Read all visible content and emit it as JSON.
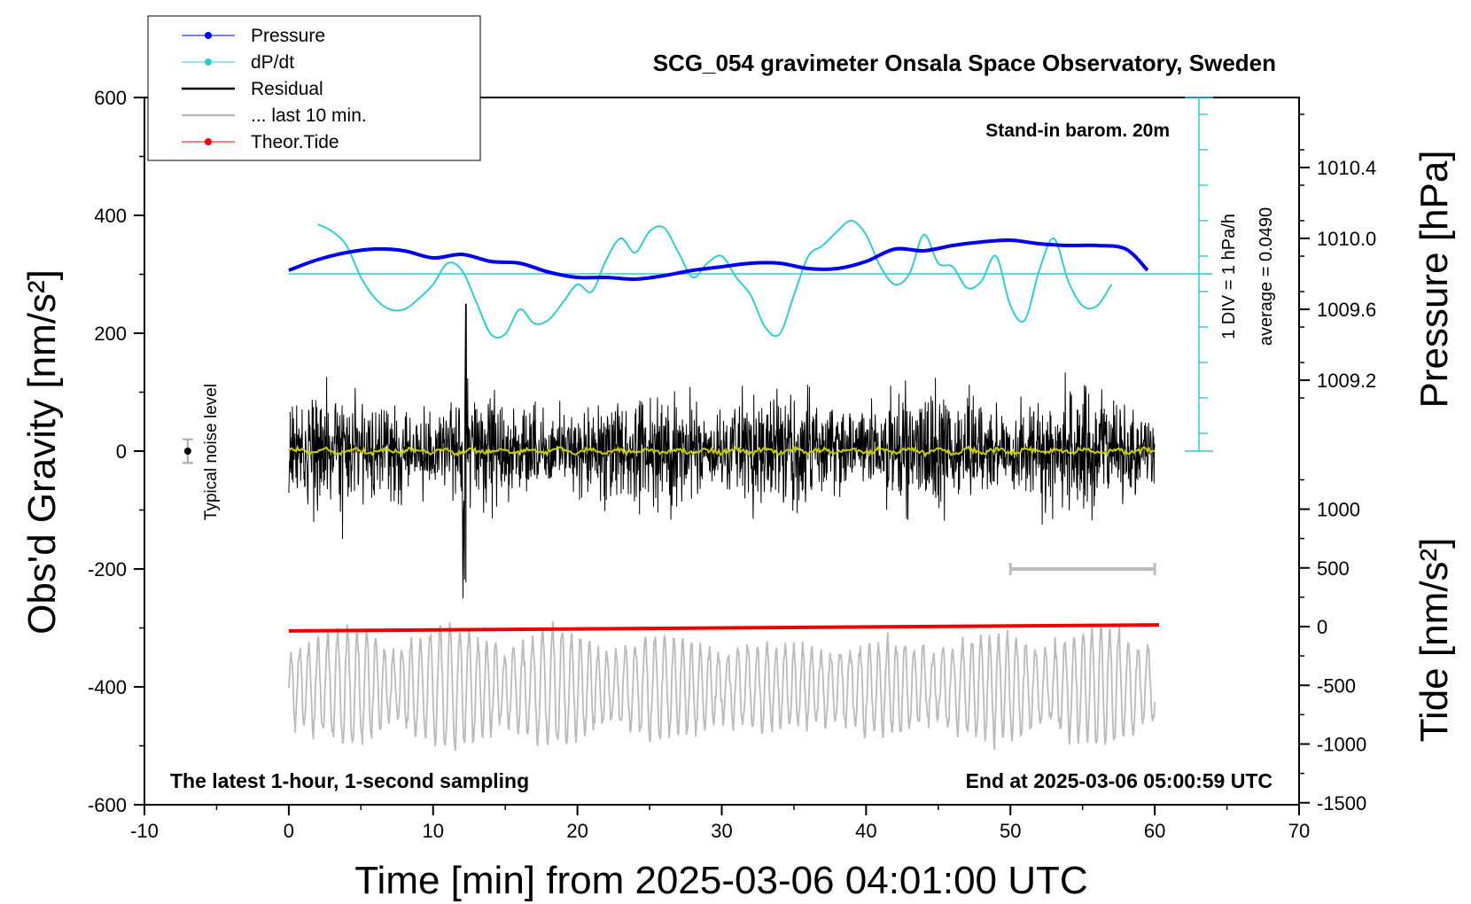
{
  "chart_data": {
    "type": "line",
    "title": "SCG_054 gravimeter Onsala Space Observatory, Sweden",
    "xlabel": "Time [min] from 2025-03-06 04:01:00 UTC",
    "ylabel_left": "Obs'd Gravity [nm/s²]",
    "ylabel_right_top": "Pressure [hPa]",
    "ylabel_right_bottom": "Tide [nm/s²]",
    "xlim": [
      -10,
      70
    ],
    "ylim_left": [
      -600,
      600
    ],
    "x_ticks": [
      "-10",
      "0",
      "10",
      "20",
      "30",
      "40",
      "50",
      "60",
      "70"
    ],
    "y_ticks_left": [
      "600",
      "400",
      "200",
      "0",
      "-200",
      "-400",
      "-600"
    ],
    "pressure_ticks": [
      "1010.4",
      "1010.0",
      "1009.6",
      "1009.2"
    ],
    "tide_ticks": [
      "1000",
      "500",
      "0",
      "-500",
      "-1000",
      "-1500"
    ],
    "annotations": {
      "barometer": "Stand-in barom. 20m",
      "dpdt_scale": "1 DIV = 1 hPa/h",
      "dpdt_average": "average = 0.0490",
      "noise_label": "Typical noise level",
      "bottom_left": "The latest 1-hour, 1-second sampling",
      "bottom_right": "End at 2025-03-06 05:00:59 UTC"
    },
    "legend": {
      "position": "top-left",
      "entries": [
        {
          "label": "Pressure",
          "color": "#0000ee",
          "marker": true
        },
        {
          "label": "dP/dt",
          "color": "#33cccc",
          "marker": true
        },
        {
          "label": "Residual",
          "color": "#000000",
          "marker": false
        },
        {
          "label": "... last 10 min.",
          "color": "#bbbbbb",
          "marker": false
        },
        {
          "label": "Theor.Tide",
          "color": "#ee0000",
          "marker": true
        }
      ]
    },
    "series": [
      {
        "name": "Pressure",
        "units": "hPa",
        "color": "#0000ee",
        "x": [
          0,
          2,
          4,
          6,
          8,
          10,
          12,
          14,
          16,
          18,
          20,
          22,
          24,
          26,
          28,
          30,
          32,
          34,
          36,
          38,
          40,
          42,
          44,
          46,
          48,
          50,
          52,
          54,
          56,
          58,
          59.5
        ],
        "y": [
          1009.82,
          1009.88,
          1009.92,
          1009.94,
          1009.93,
          1009.89,
          1009.91,
          1009.87,
          1009.86,
          1009.81,
          1009.78,
          1009.78,
          1009.77,
          1009.79,
          1009.82,
          1009.84,
          1009.86,
          1009.86,
          1009.83,
          1009.83,
          1009.87,
          1009.94,
          1009.93,
          1009.96,
          1009.98,
          1009.99,
          1009.97,
          1009.96,
          1009.96,
          1009.94,
          1009.82
        ]
      },
      {
        "name": "dP/dt",
        "units": "hPa/h (1 div = 1 hPa/h)",
        "color": "#33cccc",
        "x": [
          2,
          3,
          4,
          5,
          6,
          7,
          8,
          9,
          10,
          11,
          12,
          13,
          14,
          15,
          16,
          17,
          18,
          19,
          20,
          21,
          22,
          23,
          24,
          25,
          26,
          27,
          28,
          29,
          30,
          31,
          32,
          33,
          34,
          35,
          36,
          37,
          38,
          39,
          40,
          41,
          42,
          43,
          44,
          45,
          46,
          47,
          48,
          49,
          50,
          51,
          52,
          53,
          54,
          55,
          56,
          57
        ],
        "y": [
          1.4,
          1.2,
          0.8,
          -0.1,
          -0.7,
          -1.0,
          -1.0,
          -0.7,
          -0.3,
          0.3,
          0.1,
          -0.8,
          -1.7,
          -1.7,
          -1.0,
          -1.4,
          -1.3,
          -0.8,
          -0.3,
          -0.5,
          0.4,
          1.0,
          0.6,
          1.2,
          1.3,
          0.6,
          -0.1,
          0.3,
          0.5,
          -0.1,
          -0.6,
          -1.5,
          -1.7,
          -0.6,
          0.5,
          0.8,
          1.2,
          1.5,
          1.1,
          0.2,
          -0.3,
          0.0,
          1.1,
          0.3,
          0.2,
          -0.4,
          -0.2,
          0.5,
          -0.9,
          -1.3,
          0.1,
          1.0,
          -0.2,
          -0.9,
          -0.9,
          -0.3
        ]
      },
      {
        "name": "Residual",
        "units": "nm/s²",
        "color": "#000000",
        "x_range": [
          0,
          60
        ],
        "amplitude": 120,
        "max": 250,
        "min": -250
      },
      {
        "name": "... last 10 min.",
        "units": "nm/s²",
        "color": "#bbbbbb",
        "x_range": [
          0,
          60
        ],
        "center": -400,
        "amplitude": 100
      },
      {
        "name": "Theor.Tide",
        "units": "nm/s²",
        "color": "#ee0000",
        "x": [
          0,
          60.3
        ],
        "y": [
          -305,
          -295
        ]
      }
    ],
    "dpdt_zero_line": {
      "x": [
        0,
        64
      ]
    },
    "noise_level": {
      "x": -7,
      "y": 0,
      "error": 20
    },
    "interval_bar": {
      "x": [
        50,
        60
      ],
      "y": -200
    }
  }
}
